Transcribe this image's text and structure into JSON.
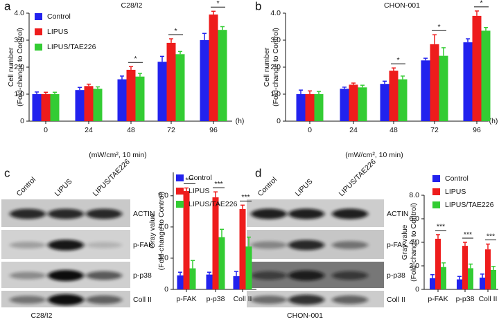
{
  "panel_labels": [
    "a",
    "b",
    "c",
    "d"
  ],
  "chart_data": [
    {
      "type": "bar",
      "title": "C28/I2",
      "ylabel": [
        "Cell number",
        "(Fold-change to Control)"
      ],
      "xlabel": "(mW/cm², 10 min)",
      "x_unit": "(h)",
      "categories": [
        "0",
        "24",
        "48",
        "72",
        "96"
      ],
      "series": [
        {
          "name": "Control",
          "color": "#2222ee",
          "values": [
            1.0,
            1.15,
            1.55,
            2.2,
            3.0
          ],
          "errors": [
            0.08,
            0.1,
            0.12,
            0.2,
            0.25
          ]
        },
        {
          "name": "LIPUS",
          "color": "#ee1c1c",
          "values": [
            1.0,
            1.3,
            1.9,
            2.9,
            3.95
          ],
          "errors": [
            0.07,
            0.07,
            0.12,
            0.15,
            0.12
          ]
        },
        {
          "name": "LIPUS/TAE226",
          "color": "#33cc33",
          "values": [
            1.0,
            1.2,
            1.65,
            2.48,
            3.38
          ],
          "errors": [
            0.07,
            0.07,
            0.12,
            0.1,
            0.12
          ]
        }
      ],
      "significance": [
        null,
        null,
        "*",
        "*",
        "*"
      ],
      "ylim": [
        0,
        4
      ],
      "yticks": [
        0,
        {
          "value": 1,
          "label": "1.0"
        },
        {
          "value": 2,
          "label": "2.0"
        },
        {
          "value": 3,
          "label": "3.0"
        },
        {
          "value": 4,
          "label": "4.0"
        }
      ],
      "grid": false,
      "legend": "upper left"
    },
    {
      "type": "bar",
      "title": "CHON-001",
      "ylabel": [
        "Cell number",
        "(Fold-change to Control)"
      ],
      "xlabel": "(mW/cm², 10 min)",
      "x_unit": "(h)",
      "categories": [
        "0",
        "24",
        "48",
        "72",
        "96"
      ],
      "series": [
        {
          "name": "Control",
          "color": "#2222ee",
          "values": [
            1.0,
            1.2,
            1.38,
            2.25,
            2.92
          ],
          "errors": [
            0.15,
            0.06,
            0.1,
            0.08,
            0.13
          ]
        },
        {
          "name": "LIPUS",
          "color": "#ee1c1c",
          "values": [
            1.0,
            1.35,
            1.87,
            2.85,
            3.9
          ],
          "errors": [
            0.12,
            0.06,
            0.1,
            0.35,
            0.18
          ]
        },
        {
          "name": "LIPUS/TAE226",
          "color": "#33cc33",
          "values": [
            1.0,
            1.25,
            1.55,
            2.42,
            3.35
          ],
          "errors": [
            0.1,
            0.08,
            0.12,
            0.3,
            0.12
          ]
        }
      ],
      "significance": [
        null,
        null,
        "*",
        "*",
        "*"
      ],
      "ylim": [
        0,
        4
      ],
      "yticks": [
        0,
        {
          "value": 1,
          "label": "1.0"
        },
        {
          "value": 2,
          "label": "2.0"
        },
        {
          "value": 3,
          "label": "3.0"
        },
        {
          "value": 4,
          "label": "4.0"
        }
      ],
      "grid": false
    },
    {
      "type": "bar",
      "ylabel": [
        "Gray value",
        "(Fold-change to Control)"
      ],
      "categories": [
        "p-FAK",
        "p-p38",
        "Coll II"
      ],
      "series": [
        {
          "name": "Control",
          "color": "#2222ee",
          "values": [
            0.9,
            0.95,
            0.85
          ],
          "errors": [
            0.2,
            0.15,
            0.3
          ]
        },
        {
          "name": "LIPUS",
          "color": "#ee1c1c",
          "values": [
            6.3,
            5.9,
            5.15
          ],
          "errors": [
            0.2,
            0.35,
            0.25
          ]
        },
        {
          "name": "LIPUS/TAE226",
          "color": "#33cc33",
          "values": [
            1.35,
            3.35,
            2.75
          ],
          "errors": [
            0.5,
            0.5,
            0.6
          ]
        }
      ],
      "significance": [
        "***",
        "***",
        "***"
      ],
      "ylim": [
        0,
        7.5
      ],
      "yticks": [
        0,
        {
          "value": 2,
          "label": "2.0"
        },
        {
          "value": 4,
          "label": "4.0"
        },
        {
          "value": 6,
          "label": "6.0"
        }
      ],
      "grid": false
    },
    {
      "type": "bar",
      "ylabel": [
        "Gray value",
        "(Fold-change to Control)"
      ],
      "categories": [
        "p-FAK",
        "p-p38",
        "Coll II"
      ],
      "series": [
        {
          "name": "Control",
          "color": "#2222ee",
          "values": [
            0.95,
            0.85,
            1.0
          ],
          "errors": [
            0.3,
            0.25,
            0.3
          ]
        },
        {
          "name": "LIPUS",
          "color": "#ee1c1c",
          "values": [
            4.3,
            3.7,
            3.4
          ],
          "errors": [
            0.35,
            0.3,
            0.45
          ]
        },
        {
          "name": "LIPUS/TAE226",
          "color": "#33cc33",
          "values": [
            1.9,
            1.8,
            1.65
          ],
          "errors": [
            0.35,
            0.35,
            0.3
          ]
        }
      ],
      "significance": [
        "***",
        "***",
        "***"
      ],
      "ylim": [
        0,
        8
      ],
      "yticks": [
        0,
        {
          "value": 2,
          "label": "2.0"
        },
        {
          "value": 4,
          "label": "4.0"
        },
        {
          "value": 6,
          "label": "6.0"
        },
        {
          "value": 8,
          "label": "8.0"
        }
      ],
      "grid": false
    }
  ],
  "blots": [
    {
      "cell_line": "C28/I2",
      "lanes": [
        "Control",
        "LIPUS",
        "LIPUS/TAE226"
      ],
      "rows": [
        "ACTIN",
        "p-FAK",
        "p-p38",
        "Coll II"
      ]
    },
    {
      "cell_line": "CHON-001",
      "lanes": [
        "Control",
        "LIPUS",
        "LIPUS/TAE226"
      ],
      "rows": [
        "ACTIN",
        "p-FAK",
        "p-p38",
        "Coll II"
      ]
    }
  ]
}
